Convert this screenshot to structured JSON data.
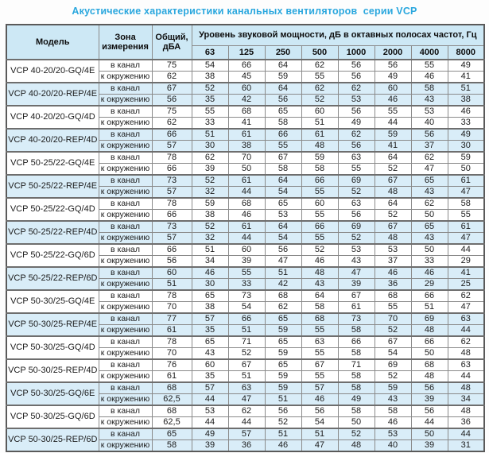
{
  "title": "Акустические характеристики канальных вентиляторов  серии VCP",
  "colors": {
    "title_text": "#2aa7de",
    "header_bg": "#cde8f5",
    "shaded_row_bg": "#d9edf8",
    "border": "#8a8a8a",
    "text": "#1c1c1c"
  },
  "table": {
    "headers": {
      "model": "Модель",
      "zone": "Зона измерения",
      "total": "Общий, дБА",
      "freq_caption": "Уровень звуковой мощности, дБ в октавных полосах частот, Гц",
      "frequencies": [
        "63",
        "125",
        "250",
        "500",
        "1000",
        "2000",
        "4000",
        "8000"
      ]
    },
    "zone_labels": [
      "в канал",
      "к окружению"
    ],
    "models": [
      {
        "name": "VCP 40-20/20-GQ/4E",
        "shaded": false,
        "rows": [
          {
            "zone": "в канал",
            "total": "75",
            "levels": [
              54,
              66,
              64,
              62,
              56,
              56,
              55,
              49
            ]
          },
          {
            "zone": "к окружению",
            "total": "62",
            "levels": [
              38,
              45,
              59,
              55,
              56,
              49,
              46,
              41
            ]
          }
        ]
      },
      {
        "name": "VCP 40-20/20-REP/4E",
        "shaded": true,
        "rows": [
          {
            "zone": "в канал",
            "total": "67",
            "levels": [
              52,
              60,
              64,
              62,
              62,
              60,
              58,
              51
            ]
          },
          {
            "zone": "к окружению",
            "total": "56",
            "levels": [
              35,
              42,
              56,
              52,
              53,
              46,
              43,
              38
            ]
          }
        ]
      },
      {
        "name": "VCP 40-20/20-GQ/4D",
        "shaded": false,
        "rows": [
          {
            "zone": "в канал",
            "total": "75",
            "levels": [
              55,
              68,
              65,
              60,
              56,
              55,
              53,
              46
            ]
          },
          {
            "zone": "к окружению",
            "total": "62",
            "levels": [
              33,
              41,
              58,
              51,
              49,
              44,
              40,
              33
            ]
          }
        ]
      },
      {
        "name": "VCP 40-20/20-REP/4D",
        "shaded": true,
        "rows": [
          {
            "zone": "в канал",
            "total": "66",
            "levels": [
              51,
              61,
              66,
              61,
              62,
              59,
              56,
              49
            ]
          },
          {
            "zone": "к окружению",
            "total": "57",
            "levels": [
              30,
              38,
              55,
              48,
              56,
              41,
              37,
              30
            ]
          }
        ]
      },
      {
        "name": "VCP 50-25/22-GQ/4E",
        "shaded": false,
        "rows": [
          {
            "zone": "в канал",
            "total": "78",
            "levels": [
              62,
              70,
              67,
              59,
              63,
              64,
              62,
              59
            ]
          },
          {
            "zone": "к окружению",
            "total": "66",
            "levels": [
              39,
              50,
              58,
              58,
              55,
              52,
              47,
              50
            ]
          }
        ]
      },
      {
        "name": "VCP 50-25/22-REP/4E",
        "shaded": true,
        "rows": [
          {
            "zone": "в канал",
            "total": "73",
            "levels": [
              52,
              61,
              64,
              66,
              69,
              67,
              65,
              61
            ]
          },
          {
            "zone": "к окружению",
            "total": "57",
            "levels": [
              32,
              44,
              54,
              55,
              52,
              48,
              43,
              47
            ]
          }
        ]
      },
      {
        "name": "VCP 50-25/22-GQ/4D",
        "shaded": false,
        "rows": [
          {
            "zone": "в канал",
            "total": "78",
            "levels": [
              59,
              68,
              65,
              60,
              63,
              64,
              62,
              58
            ]
          },
          {
            "zone": "к окружению",
            "total": "66",
            "levels": [
              38,
              46,
              53,
              55,
              56,
              52,
              50,
              55
            ]
          }
        ]
      },
      {
        "name": "VCP 50-25/22-REP/4D",
        "shaded": true,
        "rows": [
          {
            "zone": "в канал",
            "total": "73",
            "levels": [
              52,
              61,
              64,
              66,
              69,
              67,
              65,
              61
            ]
          },
          {
            "zone": "к окружению",
            "total": "57",
            "levels": [
              32,
              44,
              54,
              55,
              52,
              48,
              43,
              47
            ]
          }
        ]
      },
      {
        "name": "VCP 50-25/22-GQ/6D",
        "shaded": false,
        "rows": [
          {
            "zone": "в канал",
            "total": "66",
            "levels": [
              51,
              60,
              56,
              52,
              53,
              53,
              50,
              44
            ]
          },
          {
            "zone": "к окружению",
            "total": "56",
            "levels": [
              34,
              39,
              47,
              46,
              43,
              37,
              33,
              29
            ]
          }
        ]
      },
      {
        "name": "VCP 50-25/22-REP/6D",
        "shaded": true,
        "rows": [
          {
            "zone": "в канал",
            "total": "60",
            "levels": [
              46,
              55,
              51,
              48,
              47,
              46,
              46,
              41
            ]
          },
          {
            "zone": "к окружению",
            "total": "51",
            "levels": [
              30,
              33,
              42,
              43,
              39,
              36,
              29,
              25
            ]
          }
        ]
      },
      {
        "name": "VCP 50-30/25-GQ/4E",
        "shaded": false,
        "rows": [
          {
            "zone": "в канал",
            "total": "78",
            "levels": [
              65,
              73,
              68,
              64,
              67,
              68,
              66,
              62
            ]
          },
          {
            "zone": "к окружению",
            "total": "70",
            "levels": [
              38,
              54,
              62,
              58,
              61,
              55,
              51,
              47
            ]
          }
        ]
      },
      {
        "name": "VCP 50-30/25-REP/4E",
        "shaded": true,
        "rows": [
          {
            "zone": "в канал",
            "total": "77",
            "levels": [
              57,
              66,
              65,
              68,
              73,
              70,
              69,
              63
            ]
          },
          {
            "zone": "к окружению",
            "total": "61",
            "levels": [
              35,
              51,
              59,
              55,
              58,
              52,
              48,
              44
            ]
          }
        ]
      },
      {
        "name": "VCP 50-30/25-GQ/4D",
        "shaded": false,
        "rows": [
          {
            "zone": "в канал",
            "total": "78",
            "levels": [
              65,
              71,
              65,
              63,
              66,
              67,
              66,
              62
            ]
          },
          {
            "zone": "к окружению",
            "total": "70",
            "levels": [
              43,
              52,
              59,
              55,
              58,
              54,
              50,
              48
            ]
          }
        ]
      },
      {
        "name": "VCP 50-30/25-REP/4D",
        "shaded": false,
        "rows": [
          {
            "zone": "в канал",
            "total": "76",
            "levels": [
              60,
              67,
              65,
              67,
              71,
              69,
              68,
              63
            ]
          },
          {
            "zone": "к окружению",
            "total": "61",
            "levels": [
              35,
              51,
              59,
              55,
              58,
              52,
              48,
              44
            ]
          }
        ]
      },
      {
        "name": "VCP 50-30/25-GQ/6E",
        "shaded": true,
        "rows": [
          {
            "zone": "в канал",
            "total": "68",
            "levels": [
              57,
              63,
              59,
              57,
              58,
              59,
              56,
              48
            ]
          },
          {
            "zone": "к окружению",
            "total": "62,5",
            "levels": [
              44,
              47,
              51,
              46,
              49,
              43,
              39,
              34
            ]
          }
        ]
      },
      {
        "name": "VCP 50-30/25-GQ/6D",
        "shaded": false,
        "rows": [
          {
            "zone": "в канал",
            "total": "68",
            "levels": [
              53,
              62,
              56,
              56,
              58,
              58,
              56,
              48
            ]
          },
          {
            "zone": "к окружению",
            "total": "62,5",
            "levels": [
              44,
              44,
              52,
              54,
              50,
              46,
              44,
              36
            ]
          }
        ]
      },
      {
        "name": "VCP 50-30/25-REP/6D",
        "shaded": true,
        "rows": [
          {
            "zone": "в канал",
            "total": "65",
            "levels": [
              49,
              57,
              51,
              51,
              52,
              53,
              50,
              44
            ]
          },
          {
            "zone": "к окружению",
            "total": "58",
            "levels": [
              39,
              36,
              46,
              47,
              48,
              40,
              39,
              31
            ]
          }
        ]
      }
    ]
  }
}
